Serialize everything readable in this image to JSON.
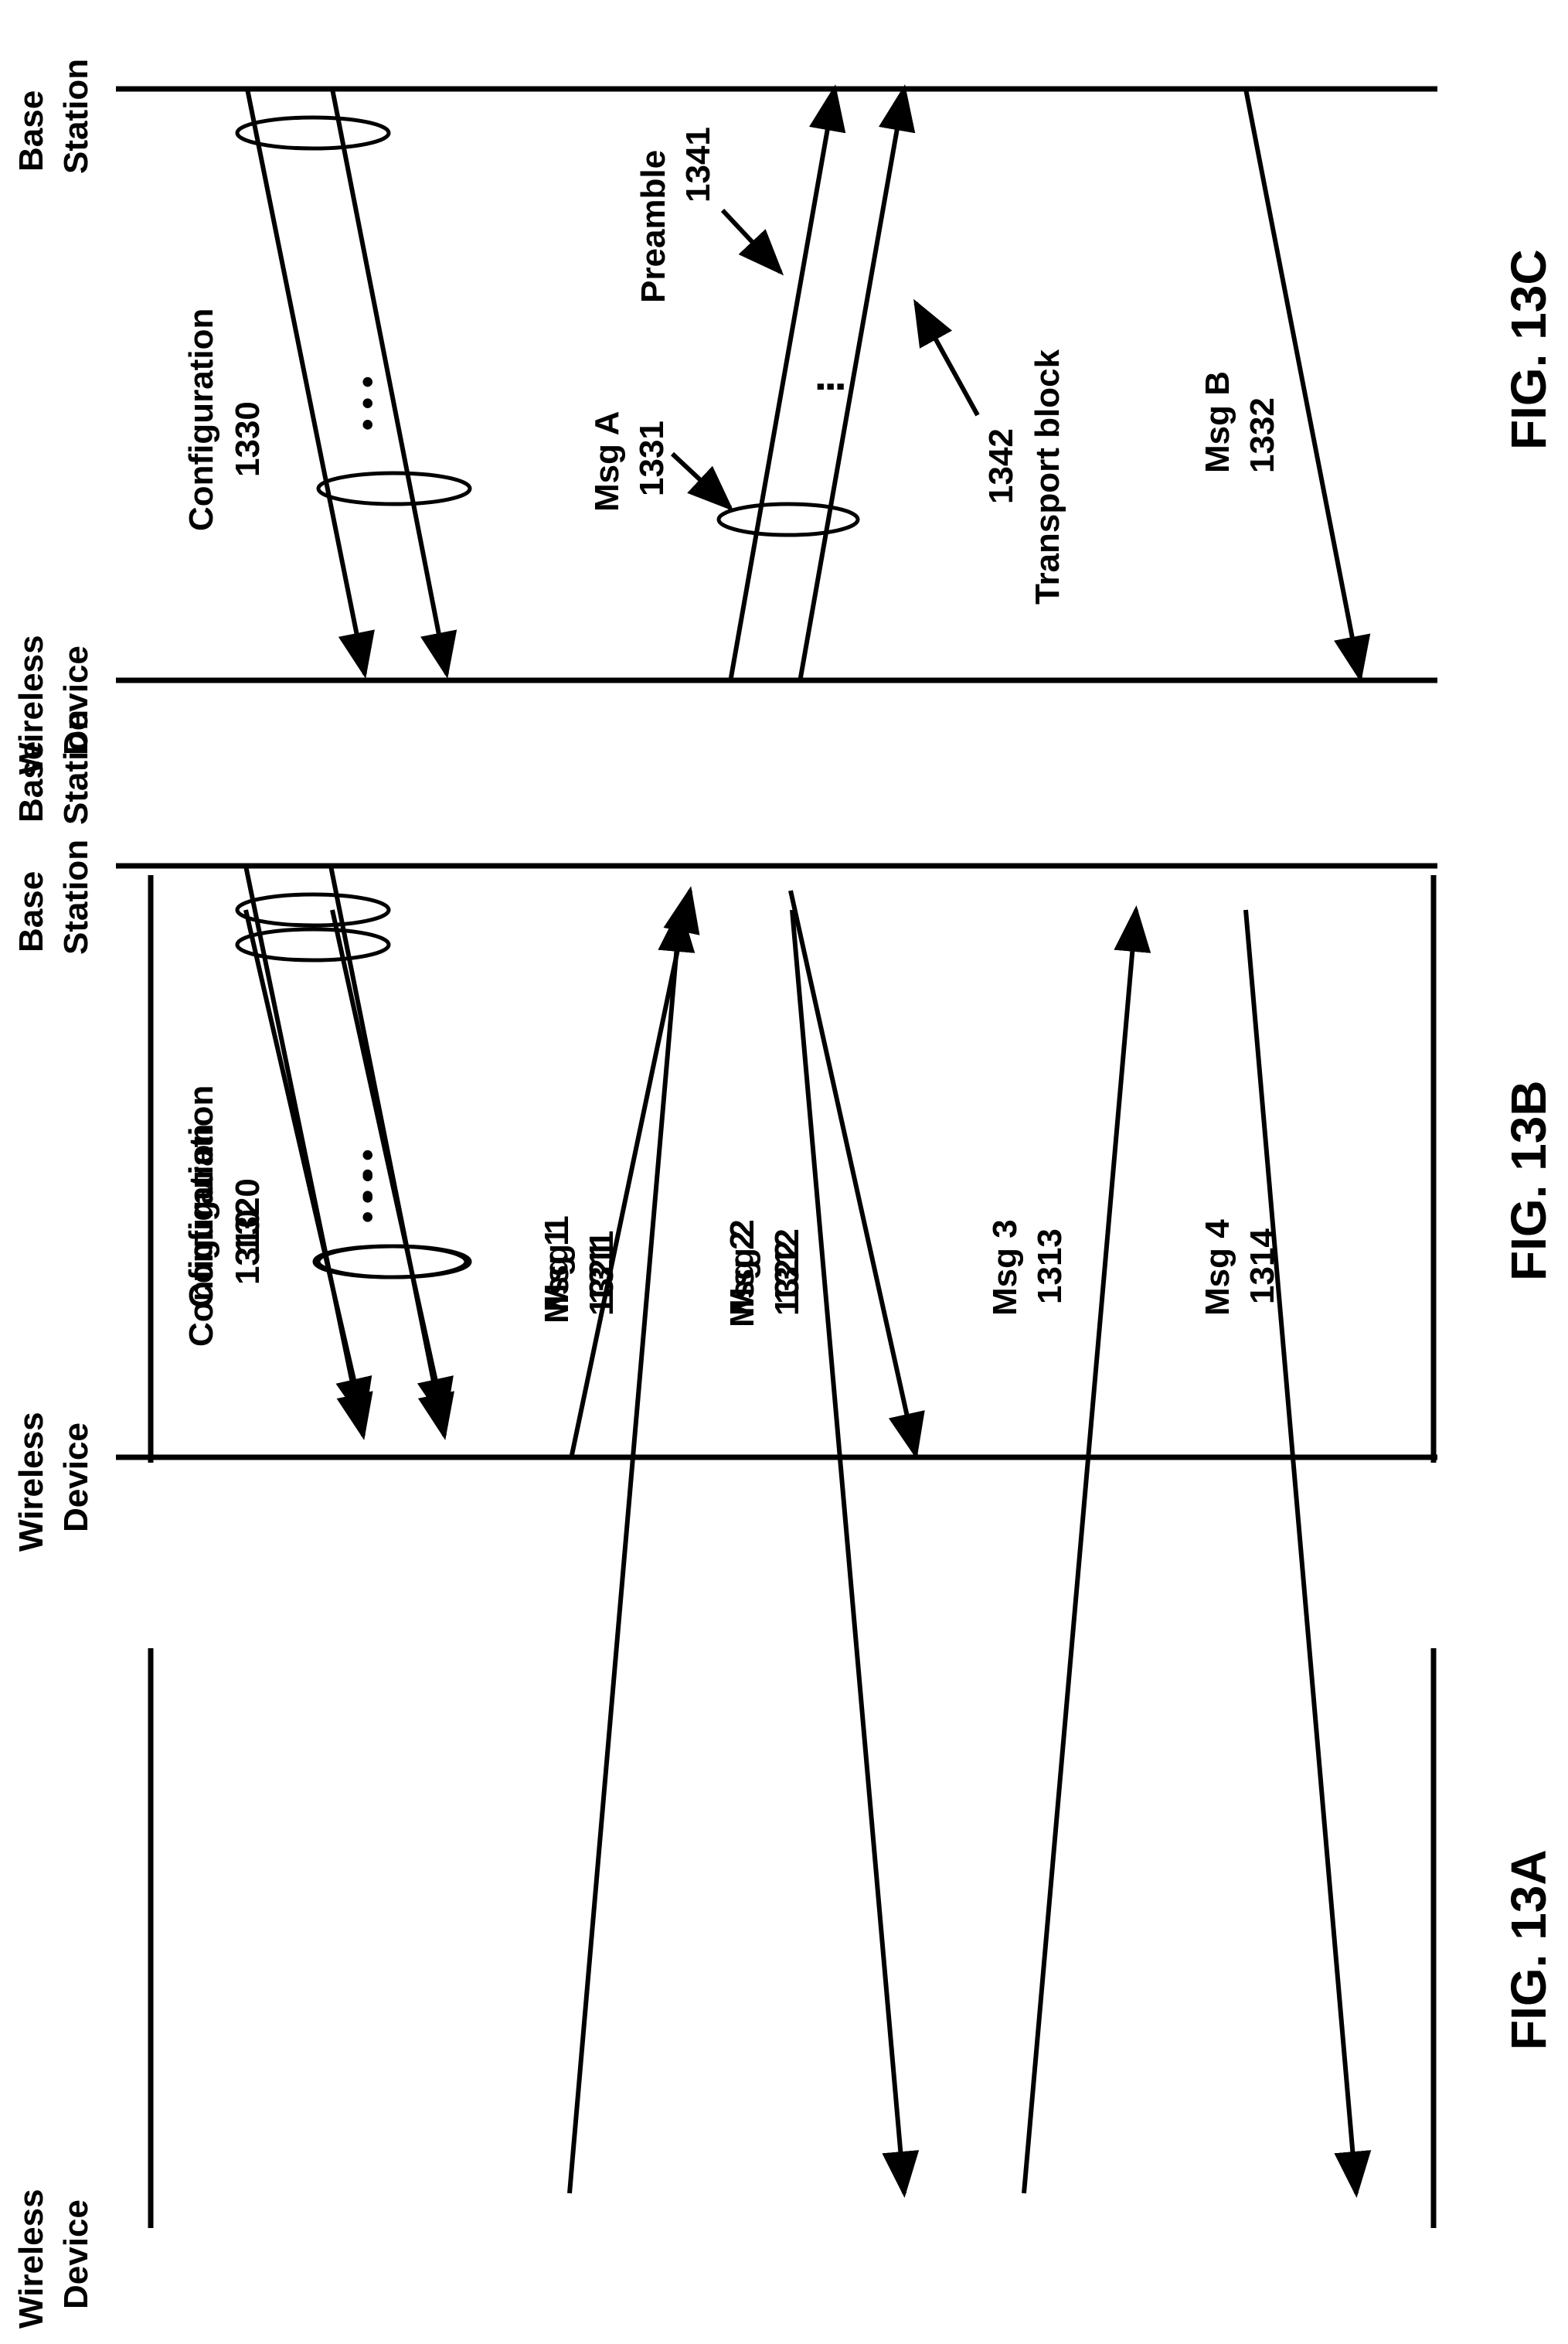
{
  "figures": [
    {
      "id": "13A",
      "caption": "FIG. 13A",
      "wireless_device_label": [
        "Wireless",
        "Device"
      ],
      "base_station_label": [
        "Base",
        "Station"
      ],
      "config": {
        "name": "Configuration",
        "ref": "1310"
      },
      "messages": [
        {
          "name": "Msg 1",
          "ref": "1311",
          "direction": "up"
        },
        {
          "name": "Msg 2",
          "ref": "1312",
          "direction": "down"
        },
        {
          "name": "Msg 3",
          "ref": "1313",
          "direction": "up"
        },
        {
          "name": "Msg 4",
          "ref": "1314",
          "direction": "down"
        }
      ]
    },
    {
      "id": "13B",
      "caption": "FIG. 13B",
      "wireless_device_label": [
        "Wireless",
        "Device"
      ],
      "base_station_label": [
        "Base",
        "Station"
      ],
      "config": {
        "name": "Configuration",
        "ref": "1320"
      },
      "messages": [
        {
          "name": "Msg 1",
          "ref": "1321",
          "direction": "up"
        },
        {
          "name": "Msg 2",
          "ref": "1322",
          "direction": "down"
        }
      ]
    },
    {
      "id": "13C",
      "caption": "FIG. 13C",
      "wireless_device_label": [
        "Wireless",
        "Device"
      ],
      "base_station_label": [
        "Base",
        "Station"
      ],
      "config": {
        "name": "Configuration",
        "ref": "1330"
      },
      "msg_a": {
        "name": "Msg A",
        "ref": "1331"
      },
      "preamble": {
        "name": "Preamble",
        "ref": "1341"
      },
      "transport_block": {
        "name": "Transport block",
        "ref": "1342"
      },
      "msg_b": {
        "name": "Msg B",
        "ref": "1332"
      }
    }
  ],
  "ellipsis": "• • •"
}
